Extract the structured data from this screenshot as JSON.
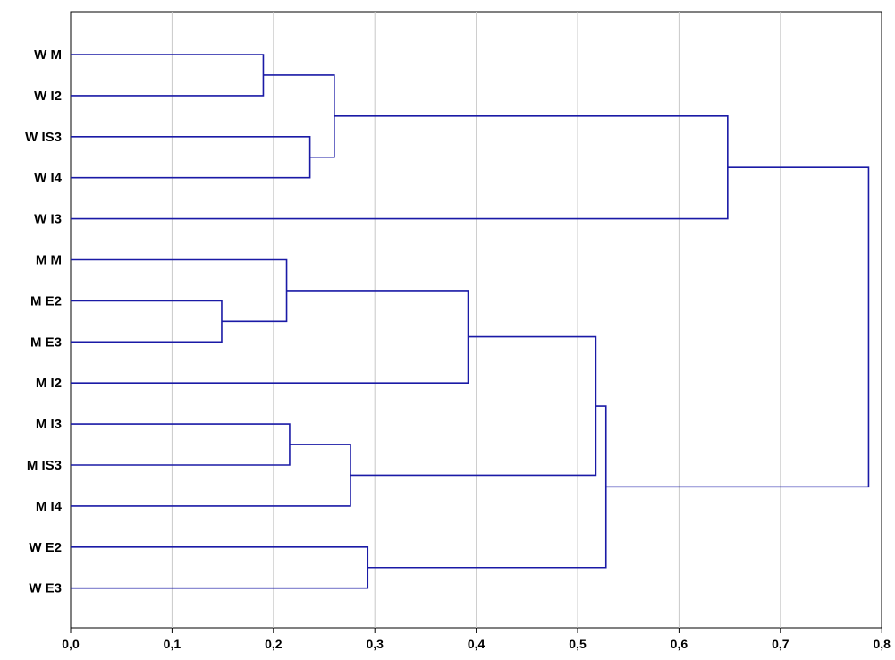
{
  "chart_data": {
    "type": "dendrogram",
    "orientation": "horizontal",
    "grid": "vertical",
    "xlim": [
      0.0,
      0.8
    ],
    "x_ticks": [
      "0,0",
      "0,1",
      "0,2",
      "0,3",
      "0,4",
      "0,5",
      "0,6",
      "0,7",
      "0,8"
    ],
    "x_tick_values": [
      0.0,
      0.1,
      0.2,
      0.3,
      0.4,
      0.5,
      0.6,
      0.7,
      0.8
    ],
    "leaves": [
      "W M",
      "W I2",
      "W IS3",
      "W I4",
      "W I3",
      "M M",
      "M E2",
      "M E3",
      "M I2",
      "M I3",
      "M IS3",
      "M I4",
      "W E2",
      "W E3"
    ],
    "merges": [
      {
        "left": "W M",
        "right": "W I2",
        "height": 0.19
      },
      {
        "left": "W IS3",
        "right": "W I4",
        "height": 0.236
      },
      {
        "left": "W M + W I2",
        "right": "W IS3 + W I4",
        "height": 0.26
      },
      {
        "left": "W M + W I2 + W IS3 + W I4",
        "right": "W I3",
        "height": 0.648
      },
      {
        "left": "M E2",
        "right": "M E3",
        "height": 0.149
      },
      {
        "left": "M M",
        "right": "M E2 + M E3",
        "height": 0.213
      },
      {
        "left": "M M + M E2 + M E3",
        "right": "M I2",
        "height": 0.392
      },
      {
        "left": "M I3",
        "right": "M IS3",
        "height": 0.216
      },
      {
        "left": "M I3 + M IS3",
        "right": "M I4",
        "height": 0.276
      },
      {
        "left": "M M + M E2 + M E3 + M I2",
        "right": "M I3 + M IS3 + M I4",
        "height": 0.518
      },
      {
        "left": "W E2",
        "right": "W E3",
        "height": 0.293
      },
      {
        "left": "M cluster",
        "right": "W E2 + W E3",
        "height": 0.528
      },
      {
        "left": "W upper cluster",
        "right": "M + W E cluster",
        "height": 0.787
      }
    ]
  },
  "colors": {
    "link": "#1a1aa6",
    "grid": "#c8c8c8",
    "frame": "#000000"
  }
}
